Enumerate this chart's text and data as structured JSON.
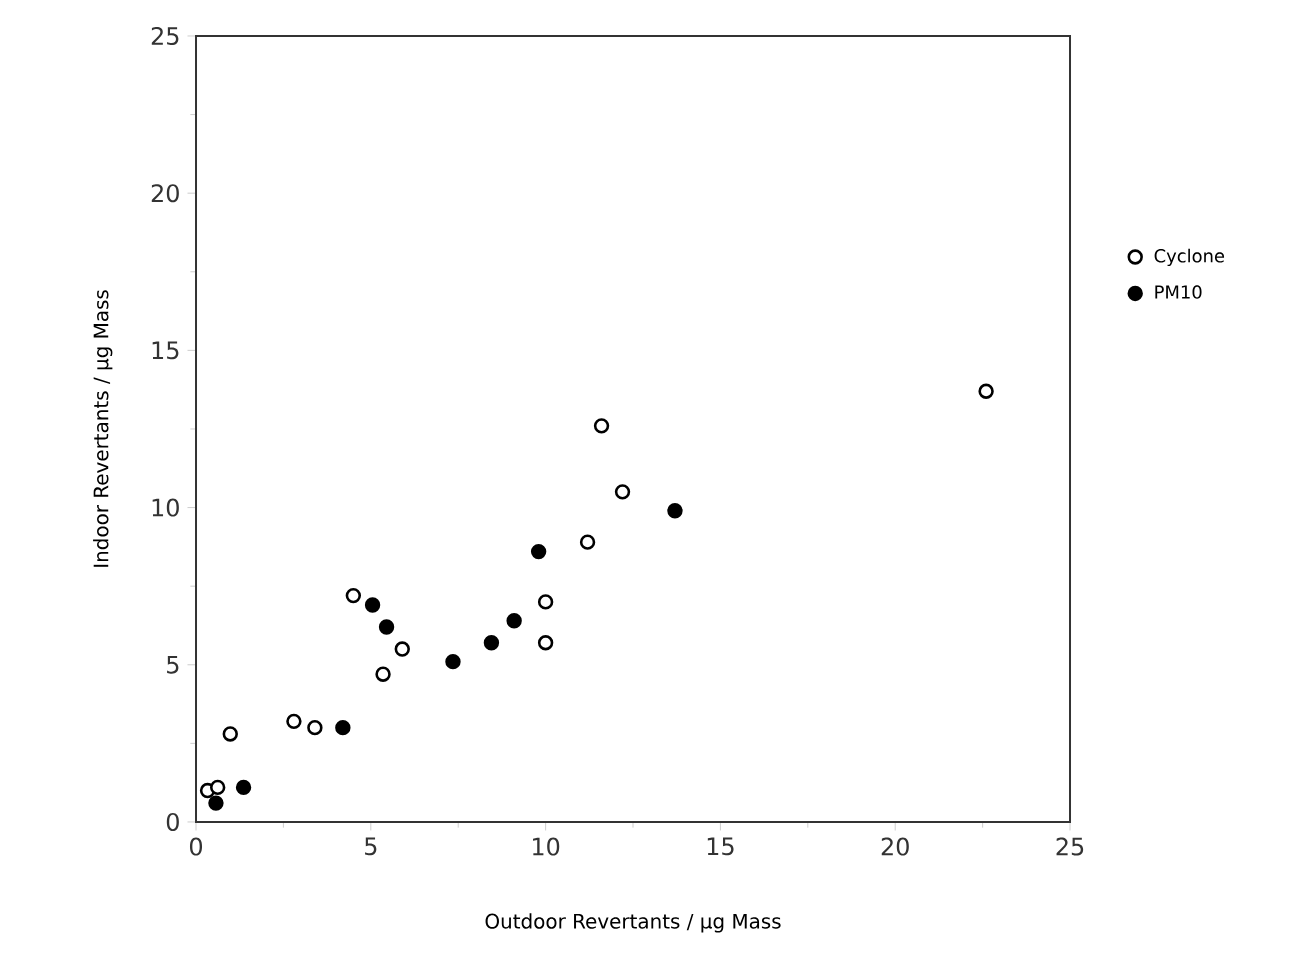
{
  "chart_data": {
    "type": "scatter",
    "xlabel": "Outdoor  Revertants  /  μg  Mass",
    "ylabel": "Indoor  Revertants  /  μg  Mass",
    "xlim": [
      0,
      25
    ],
    "ylim": [
      0,
      25
    ],
    "xticks": [
      0,
      5,
      10,
      15,
      20,
      25
    ],
    "yticks": [
      0,
      5,
      10,
      15,
      20,
      25
    ],
    "marker": "circle",
    "legend": "right",
    "grid": false,
    "series": [
      {
        "name": "Cyclone",
        "color": "#000000",
        "x": [
          0.33,
          0.62,
          0.98,
          2.8,
          3.4,
          4.5,
          5.35,
          5.9,
          10.0,
          10.0,
          11.2,
          11.6,
          12.2,
          22.6
        ],
        "values": [
          1.0,
          1.1,
          2.8,
          3.2,
          3.0,
          7.2,
          4.7,
          5.5,
          7.0,
          5.7,
          8.9,
          12.6,
          10.5,
          13.7
        ]
      },
      {
        "name": "PM10",
        "color": "#000000",
        "x": [
          0.57,
          1.36,
          4.2,
          5.05,
          5.45,
          7.35,
          8.45,
          9.1,
          9.8,
          13.7
        ],
        "values": [
          0.6,
          1.1,
          3.0,
          6.9,
          6.2,
          5.1,
          5.7,
          6.4,
          8.6,
          9.9
        ]
      }
    ]
  }
}
